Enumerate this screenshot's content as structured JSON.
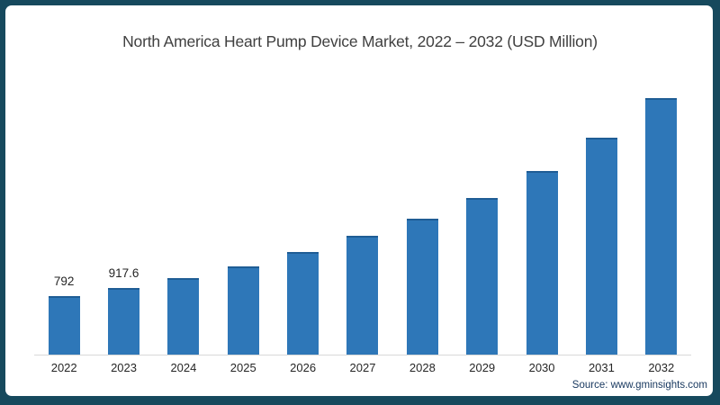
{
  "title": "North America Heart Pump Device Market, 2022 – 2032 (USD Million)",
  "source": "Source: www.gminsights.com",
  "colors": {
    "frame": "#16495d",
    "bar": "#2e77b8",
    "bar_top": "#1f5d95",
    "axis_line": "#d9d9d9",
    "title_text": "#404040",
    "tick_text": "#262626",
    "source_text": "#17375e"
  },
  "chart_data": {
    "type": "bar",
    "title": "North America Heart Pump Device Market, 2022 – 2032 (USD Million)",
    "categories": [
      "2022",
      "2023",
      "2024",
      "2025",
      "2026",
      "2027",
      "2028",
      "2029",
      "2030",
      "2031",
      "2032"
    ],
    "values": [
      792,
      917.6,
      1050,
      1215,
      1420,
      1645,
      1885,
      2175,
      2555,
      3025,
      3580
    ],
    "data_labels": [
      "792",
      "917.6",
      "",
      "",
      "",
      "",
      "",
      "",
      "",
      "",
      ""
    ],
    "xlabel": "",
    "ylabel": "",
    "unit": "USD Million",
    "ylim": [
      0,
      3800
    ],
    "grid": false,
    "legend": false
  }
}
